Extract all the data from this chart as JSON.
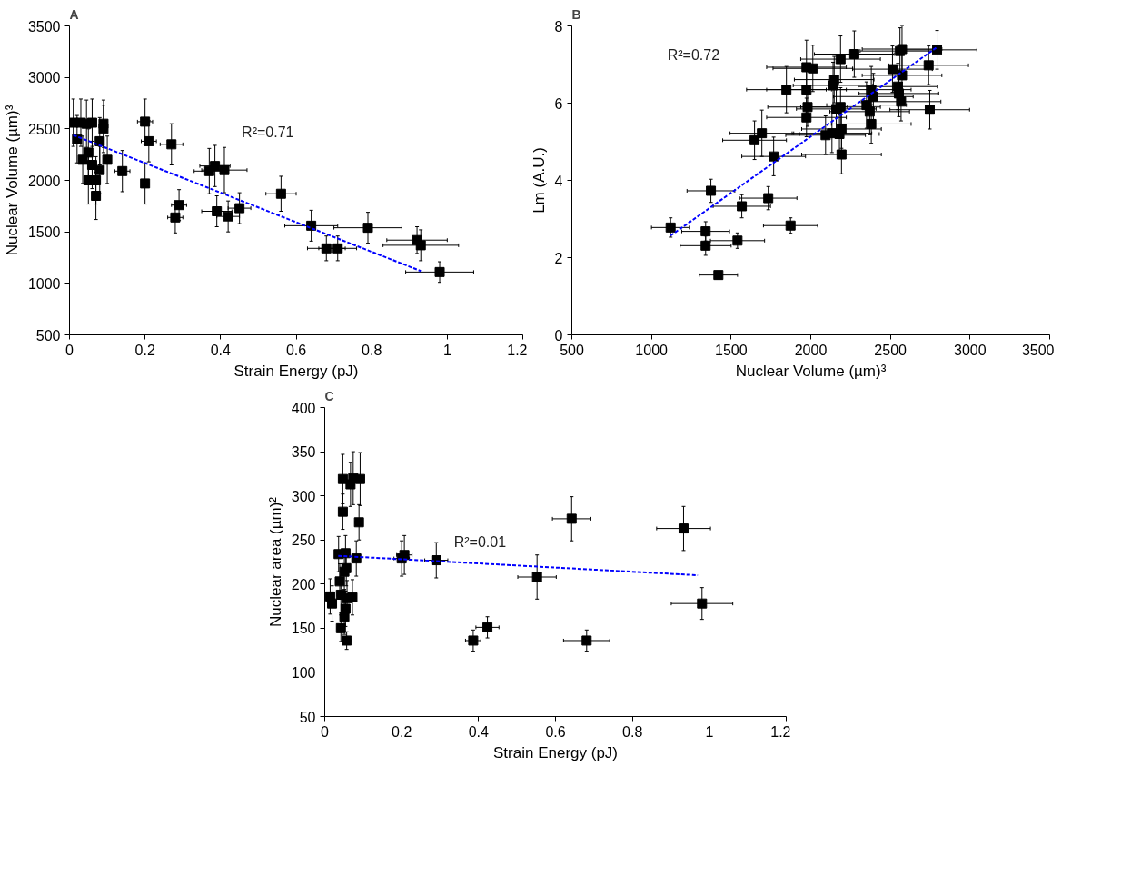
{
  "chart_data": [
    {
      "type": "scatter",
      "title": "A",
      "xlabel": "Strain Energy (pJ)",
      "ylabel": "Nuclear Volume (µm)³",
      "xlim": [
        0,
        1.2
      ],
      "xticks": [
        0,
        0.2,
        0.4,
        0.6,
        0.8,
        1,
        1.2
      ],
      "ylim": [
        500,
        3500
      ],
      "yticks": [
        500,
        1000,
        1500,
        2000,
        2500,
        3000,
        3500
      ],
      "grid": false,
      "annotations": [
        "R²=0.71"
      ],
      "series": [
        {
          "marker": "square",
          "color": "#000000",
          "x": [
            0.01,
            0.02,
            0.03,
            0.035,
            0.045,
            0.05,
            0.05,
            0.06,
            0.06,
            0.07,
            0.07,
            0.08,
            0.08,
            0.09,
            0.09,
            0.1,
            0.14,
            0.2,
            0.2,
            0.21,
            0.27,
            0.28,
            0.29,
            0.37,
            0.385,
            0.39,
            0.41,
            0.42,
            0.45,
            0.56,
            0.64,
            0.68,
            0.71,
            0.79,
            0.92,
            0.93,
            0.98
          ],
          "values": [
            2560,
            2400,
            2560,
            2200,
            2550,
            2000,
            2270,
            2150,
            2560,
            1850,
            2000,
            2100,
            2380,
            2550,
            2500,
            2200,
            2090,
            2570,
            1970,
            2380,
            2350,
            1640,
            1760,
            2090,
            2140,
            1700,
            2100,
            1650,
            1730,
            1870,
            1560,
            1340,
            1340,
            1540,
            1420,
            1370,
            1110
          ],
          "errors": [
            230,
            230,
            230,
            230,
            230,
            230,
            230,
            230,
            230,
            230,
            230,
            230,
            230,
            230,
            230,
            230,
            200,
            220,
            200,
            200,
            200,
            150,
            150,
            220,
            200,
            150,
            220,
            150,
            150,
            170,
            150,
            120,
            120,
            150,
            130,
            150,
            100
          ],
          "xerrors": [
            0.01,
            0.01,
            0.01,
            0.01,
            0.01,
            0.01,
            0.01,
            0.01,
            0.01,
            0.01,
            0.01,
            0.01,
            0.01,
            0.01,
            0.01,
            0.01,
            0.02,
            0.02,
            0.01,
            0.02,
            0.03,
            0.02,
            0.02,
            0.04,
            0.04,
            0.04,
            0.06,
            0.03,
            0.03,
            0.04,
            0.07,
            0.05,
            0.05,
            0.09,
            0.08,
            0.1,
            0.09
          ]
        },
        {
          "type": "line",
          "line_style": "dashed",
          "color": "#0000ff",
          "x": [
            0.01,
            0.93
          ],
          "values": [
            2440,
            1120
          ]
        }
      ]
    },
    {
      "type": "scatter",
      "title": "B",
      "xlabel": "Nuclear Volume (µm)³",
      "ylabel": "Lm (A.U.)",
      "xlim": [
        500,
        3500
      ],
      "xticks": [
        500,
        1000,
        1500,
        2000,
        2500,
        3000,
        3500
      ],
      "ylim": [
        0,
        8
      ],
      "yticks": [
        0,
        2,
        4,
        6,
        8
      ],
      "grid": false,
      "annotations": [
        "R²=0.72"
      ],
      "series": [
        {
          "marker": "square",
          "color": "#000000",
          "x": [
            1120,
            1373,
            1340,
            1340,
            1540,
            1567,
            1733,
            1873,
            1420,
            1647,
            1693,
            1767,
            1847,
            1973,
            2013,
            1973,
            1980,
            1973,
            2093,
            2147,
            2140,
            2187,
            2273,
            2160,
            2187,
            2133,
            2193,
            2180,
            2193,
            2380,
            2393,
            2350,
            2370,
            2380,
            2513,
            2560,
            2573,
            2573,
            2547,
            2553,
            2567,
            2740,
            2793,
            2747
          ],
          "values": [
            2.78,
            3.73,
            2.68,
            2.31,
            2.44,
            3.33,
            3.54,
            2.83,
            1.55,
            5.04,
            5.22,
            4.62,
            6.35,
            6.93,
            6.9,
            6.35,
            5.9,
            5.63,
            5.17,
            6.61,
            6.46,
            7.14,
            7.27,
            5.85,
            5.9,
            5.22,
            5.33,
            5.2,
            4.67,
            6.35,
            6.17,
            5.95,
            5.78,
            5.46,
            6.88,
            7.35,
            7.4,
            6.72,
            6.43,
            6.25,
            6.04,
            6.98,
            7.38,
            5.83
          ],
          "errors": [
            0.25,
            0.3,
            0.25,
            0.25,
            0.2,
            0.3,
            0.3,
            0.2,
            0.1,
            0.5,
            0.6,
            0.5,
            0.6,
            0.7,
            0.6,
            0.6,
            0.5,
            0.5,
            0.5,
            0.6,
            0.6,
            0.6,
            0.6,
            0.6,
            0.5,
            0.5,
            0.5,
            0.5,
            0.5,
            0.6,
            0.6,
            0.6,
            0.6,
            0.5,
            0.6,
            0.6,
            0.6,
            0.6,
            0.6,
            0.6,
            0.5,
            0.5,
            0.5,
            0.5
          ],
          "xerrors": [
            120,
            150,
            150,
            160,
            170,
            180,
            180,
            170,
            120,
            200,
            200,
            200,
            250,
            250,
            250,
            250,
            250,
            250,
            250,
            250,
            250,
            250,
            250,
            250,
            250,
            250,
            250,
            250,
            250,
            250,
            250,
            250,
            250,
            250,
            250,
            250,
            250,
            250,
            250,
            250,
            250,
            250,
            250,
            250
          ]
        },
        {
          "type": "line",
          "line_style": "dashed",
          "color": "#0000ff",
          "x": [
            1120,
            2793
          ],
          "values": [
            2.57,
            7.45
          ]
        }
      ]
    },
    {
      "type": "scatter",
      "title": "C",
      "xlabel": "Strain Energy (pJ)",
      "ylabel": "Nuclear area (µm)²",
      "xlim": [
        0,
        1.2
      ],
      "xticks": [
        0,
        0.2,
        0.4,
        0.6,
        0.8,
        1,
        1.2
      ],
      "ylim": [
        50,
        400
      ],
      "yticks": [
        50,
        100,
        150,
        200,
        250,
        300,
        350,
        400
      ],
      "grid": false,
      "annotations": [
        "R²=0.01"
      ],
      "series": [
        {
          "marker": "square",
          "color": "#000000",
          "x": [
            0.047,
            0.067,
            0.074,
            0.092,
            0.047,
            0.089,
            0.036,
            0.054,
            0.082,
            0.056,
            0.051,
            0.039,
            0.014,
            0.019,
            0.042,
            0.058,
            0.072,
            0.054,
            0.051,
            0.042,
            0.057,
            0.207,
            0.2,
            0.29,
            0.642,
            0.933,
            0.552,
            0.981,
            0.423,
            0.386,
            0.681
          ],
          "values": [
            319,
            313,
            320,
            319,
            282,
            270,
            234,
            235,
            229,
            218,
            214,
            203,
            186,
            178,
            188,
            184,
            185,
            172,
            163,
            150,
            136,
            233,
            229,
            227,
            274,
            263,
            208,
            178,
            151,
            136,
            136
          ],
          "errors": [
            28,
            25,
            30,
            30,
            20,
            20,
            20,
            20,
            20,
            20,
            20,
            20,
            20,
            20,
            20,
            20,
            20,
            20,
            20,
            15,
            10,
            22,
            20,
            20,
            25,
            25,
            25,
            18,
            12,
            12,
            12
          ],
          "xerrors": [
            0.01,
            0.01,
            0.01,
            0.01,
            0.01,
            0.01,
            0.01,
            0.01,
            0.01,
            0.01,
            0.01,
            0.01,
            0.01,
            0.01,
            0.01,
            0.01,
            0.01,
            0.01,
            0.01,
            0.01,
            0.01,
            0.02,
            0.02,
            0.03,
            0.05,
            0.07,
            0.05,
            0.08,
            0.03,
            0.02,
            0.06
          ]
        },
        {
          "type": "line",
          "line_style": "dashed",
          "color": "#0000ff",
          "x": [
            0.035,
            0.97
          ],
          "values": [
            232,
            210
          ]
        }
      ]
    }
  ]
}
